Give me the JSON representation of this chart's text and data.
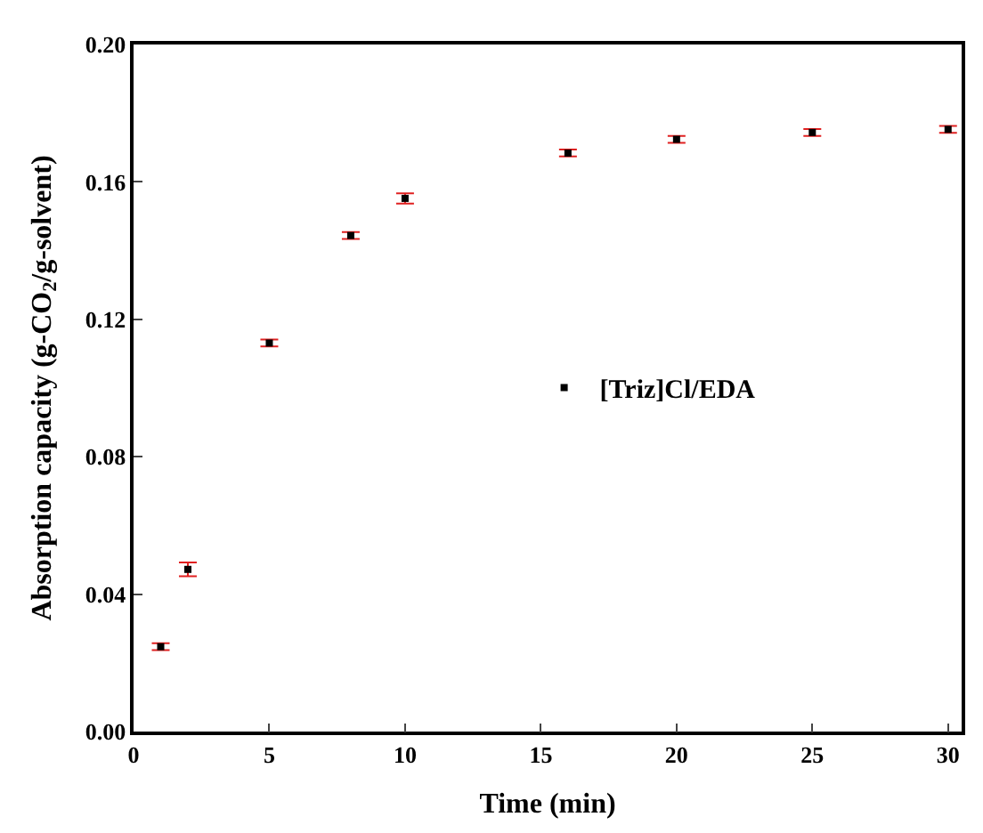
{
  "chart_data": {
    "type": "scatter",
    "xlabel": "Time (min)",
    "ylabel": "Absorption capacity (g-CO$_{2}$/g-solvent)",
    "x": [
      1,
      2,
      5,
      8,
      10,
      16,
      20,
      25,
      30
    ],
    "series": [
      {
        "name": "[Triz]Cl/EDA",
        "color": "#000000",
        "values": [
          0.0247,
          0.0472,
          0.1131,
          0.1444,
          0.1552,
          0.1684,
          0.1724,
          0.1744,
          0.1753
        ],
        "errors": [
          0.001,
          0.002,
          0.001,
          0.001,
          0.0015,
          0.001,
          0.001,
          0.001,
          0.001
        ]
      }
    ],
    "xlim": [
      0,
      30.5
    ],
    "ylim": [
      0,
      0.2
    ],
    "xticks": [
      0,
      5,
      10,
      15,
      20,
      25,
      30
    ],
    "yticks": [
      {
        "value": 0,
        "label": "0.00"
      },
      {
        "value": 0.04,
        "label": "0.04"
      },
      {
        "value": 0.08,
        "label": "0.08"
      },
      {
        "value": 0.12,
        "label": "0.12"
      },
      {
        "value": 0.16,
        "label": "0.16"
      },
      {
        "value": 0.2,
        "label": "0.20"
      }
    ],
    "marker": "square",
    "legend": "center"
  }
}
